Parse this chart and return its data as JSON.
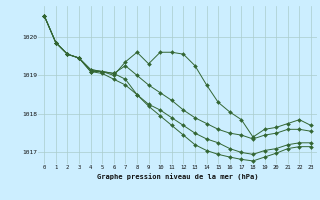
{
  "xlabel": "Graphe pression niveau de la mer (hPa)",
  "xlim": [
    -0.5,
    23.5
  ],
  "ylim": [
    1016.7,
    1020.8
  ],
  "yticks": [
    1017,
    1018,
    1019,
    1020
  ],
  "xticks": [
    0,
    1,
    2,
    3,
    4,
    5,
    6,
    7,
    8,
    9,
    10,
    11,
    12,
    13,
    14,
    15,
    16,
    17,
    18,
    19,
    20,
    21,
    22,
    23
  ],
  "background_color": "#cceeff",
  "grid_color": "#aacccc",
  "line_color": "#336633",
  "series": [
    [
      1020.55,
      1019.85,
      1019.55,
      1019.45,
      1019.1,
      1019.1,
      1019.0,
      1019.35,
      1019.6,
      1019.3,
      1019.6,
      1019.6,
      1019.55,
      1019.25,
      1018.75,
      1018.3,
      1018.05,
      1017.85,
      1017.4,
      1017.6,
      1017.65,
      1017.75,
      1017.85,
      1017.7
    ],
    [
      1020.55,
      1019.85,
      1019.55,
      1019.45,
      1019.15,
      1019.1,
      1019.05,
      1018.9,
      1018.5,
      1018.25,
      1018.1,
      1017.9,
      1017.7,
      1017.5,
      1017.35,
      1017.25,
      1017.1,
      1017.0,
      1016.95,
      1017.05,
      1017.1,
      1017.2,
      1017.25,
      1017.25
    ],
    [
      1020.55,
      1019.85,
      1019.55,
      1019.45,
      1019.15,
      1019.1,
      1019.05,
      1019.25,
      1019.0,
      1018.75,
      1018.55,
      1018.35,
      1018.1,
      1017.9,
      1017.75,
      1017.6,
      1017.5,
      1017.45,
      1017.35,
      1017.45,
      1017.5,
      1017.6,
      1017.6,
      1017.55
    ],
    [
      1020.55,
      1019.85,
      1019.55,
      1019.45,
      1019.1,
      1019.05,
      1018.9,
      1018.75,
      1018.5,
      1018.2,
      1017.95,
      1017.7,
      1017.45,
      1017.2,
      1017.05,
      1016.95,
      1016.88,
      1016.82,
      1016.78,
      1016.88,
      1016.98,
      1017.1,
      1017.15,
      1017.15
    ]
  ]
}
